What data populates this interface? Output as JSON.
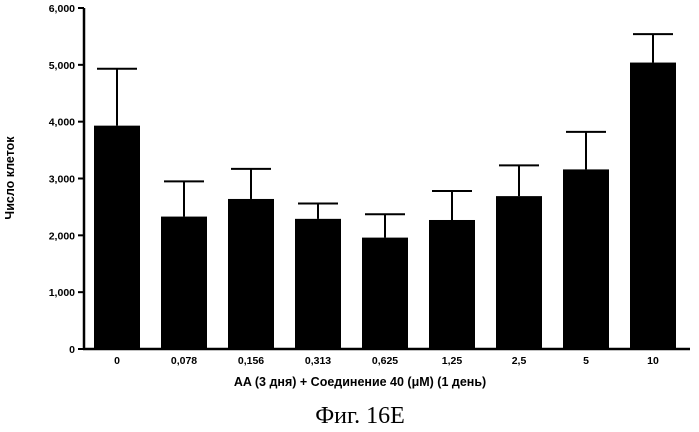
{
  "chart_data": {
    "type": "bar",
    "categories": [
      "0",
      "0,078",
      "0,156",
      "0,313",
      "0,625",
      "1,25",
      "2,5",
      "5",
      "10"
    ],
    "values": [
      3930,
      2330,
      2640,
      2290,
      1960,
      2270,
      2690,
      3160,
      5040
    ],
    "error_upper": [
      4930,
      2950,
      3170,
      2560,
      2370,
      2780,
      3230,
      3820,
      5540
    ],
    "ylim": [
      0,
      6000
    ],
    "yticks": [
      0,
      1000,
      2000,
      3000,
      4000,
      5000,
      6000
    ],
    "ytick_labels": [
      "0",
      "1,000",
      "2,000",
      "3,000",
      "4,000",
      "5,000",
      "6,000"
    ],
    "xlabel": "AA (3 дня)  + Соединение 40 (μM) (1 день)",
    "ylabel": "Число клеток",
    "grid": false,
    "bar_color": "#000000"
  },
  "caption": "Фиг. 16E"
}
